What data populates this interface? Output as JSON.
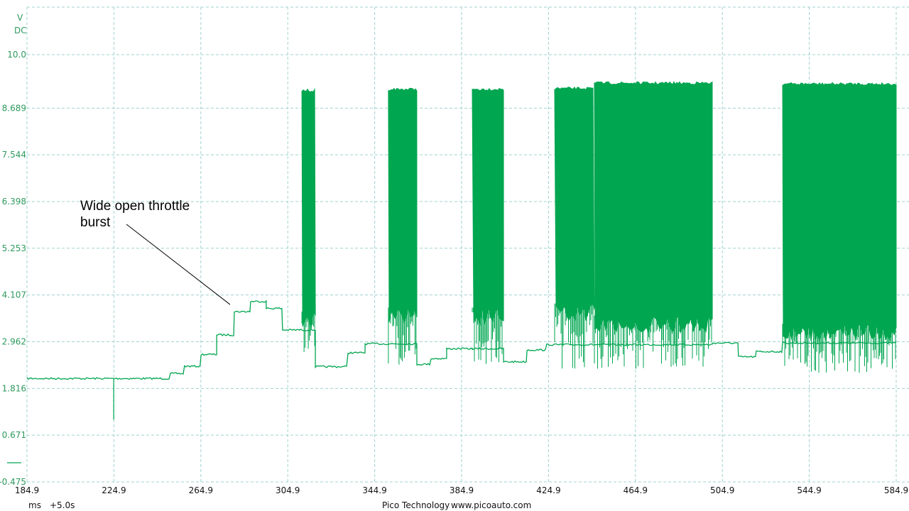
{
  "chart_data": {
    "type": "line",
    "yunit": "V",
    "coupling": "DC",
    "ylim": [
      -0.475,
      10.0
    ],
    "yticks": [
      "10.0",
      "8.689",
      "7.544",
      "6.398",
      "5.253",
      "4.107",
      "2.962",
      "1.816",
      "0.671",
      "-0.475"
    ],
    "xlim": [
      184.9,
      584.9
    ],
    "xticks": [
      "184.9",
      "224.9",
      "264.9",
      "304.9",
      "344.9",
      "384.9",
      "424.9",
      "464.9",
      "504.9",
      "544.9",
      "584.9"
    ],
    "xunit": "ms",
    "xoffset": "+5.0s",
    "grid": true,
    "series_color": "#00a650",
    "steps": [
      [
        184.9,
        2.06
      ],
      [
        250.9,
        2.18
      ],
      [
        257.4,
        2.36
      ],
      [
        265.0,
        2.65
      ],
      [
        272.2,
        3.13
      ],
      [
        280.3,
        3.7
      ],
      [
        287.8,
        3.95
      ],
      [
        295.0,
        3.78
      ],
      [
        302.5,
        3.25
      ],
      [
        310.4,
        3.25
      ],
      [
        317.6,
        2.35
      ],
      [
        332.6,
        2.69
      ],
      [
        340.5,
        2.91
      ],
      [
        351.2,
        2.91
      ],
      [
        364.3,
        2.41
      ],
      [
        370.8,
        2.55
      ],
      [
        378.0,
        2.79
      ],
      [
        389.8,
        2.79
      ],
      [
        404.2,
        2.47
      ],
      [
        415.0,
        2.76
      ],
      [
        424.1,
        2.89
      ],
      [
        427.7,
        2.89
      ],
      [
        500.3,
        2.93
      ],
      [
        512.3,
        2.59
      ],
      [
        520.5,
        2.72
      ],
      [
        532.6,
        2.93
      ],
      [
        584.9,
        2.93
      ]
    ],
    "spikes": [
      {
        "t": 224.8,
        "v": 1.05
      }
    ],
    "bursts": [
      {
        "start": 311.4,
        "end": 317.6,
        "high": 9.12,
        "solid_low": 3.7,
        "low": 2.7
      },
      {
        "start": 351.2,
        "end": 364.3,
        "high": 9.15,
        "solid_low": 3.8,
        "low": 2.4
      },
      {
        "start": 389.8,
        "end": 404.2,
        "high": 9.15,
        "solid_low": 3.8,
        "low": 2.4
      },
      {
        "start": 427.7,
        "end": 446.0,
        "high": 9.17,
        "solid_low": 3.9,
        "low": 2.3
      },
      {
        "start": 446.0,
        "end": 500.3,
        "high": 9.3,
        "solid_low": 3.6,
        "low": 2.3
      },
      {
        "start": 532.6,
        "end": 584.9,
        "high": 9.28,
        "solid_low": 3.4,
        "low": 2.2
      }
    ],
    "annotation": {
      "text_line1": "Wide open throttle",
      "text_line2": "burst",
      "points_to_t": 279.0,
      "points_to_v": 3.7
    }
  },
  "footer": {
    "brand": "Pico Technology",
    "url": "www.picoauto.com"
  }
}
